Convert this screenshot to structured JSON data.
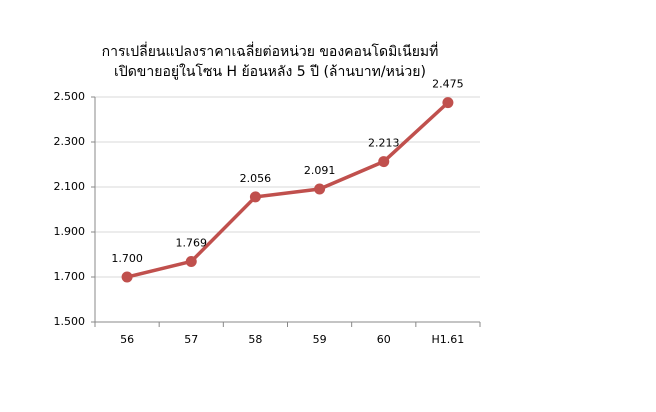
{
  "chart_data": {
    "type": "line",
    "title": [
      "การเปลี่ยนแปลงราคาเฉลี่ยต่อหน่วย ของคอนโดมิเนียมที่",
      "เปิดขายอยู่ในโซน H ย้อนหลัง 5 ปี (ล้านบาท/หน่วย)"
    ],
    "categories": [
      "56",
      "57",
      "58",
      "59",
      "60",
      "H1.61"
    ],
    "values": [
      1.7,
      1.769,
      2.056,
      2.091,
      2.213,
      2.475
    ],
    "value_labels": [
      "1.700",
      "1.769",
      "2.056",
      "2.091",
      "2.213",
      "2.475"
    ],
    "color": "#c0504d",
    "ylim": [
      1.5,
      2.5
    ],
    "yticks": [
      {
        "value": 1.5,
        "label": "1.500"
      },
      {
        "value": 1.7,
        "label": "1.700"
      },
      {
        "value": 1.9,
        "label": "1.900"
      },
      {
        "value": 2.1,
        "label": "2.100"
      },
      {
        "value": 2.3,
        "label": "2.300"
      },
      {
        "value": 2.5,
        "label": "2.500"
      }
    ],
    "grid": true
  }
}
